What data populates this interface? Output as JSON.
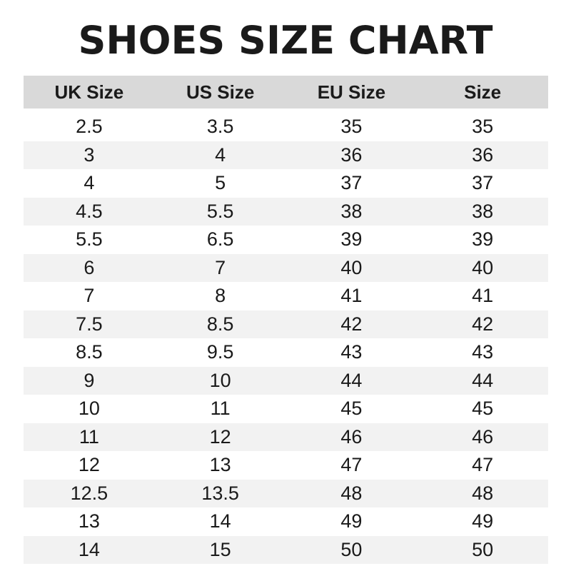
{
  "title": "SHOES SIZE CHART",
  "colors": {
    "header_bg": "#d9d9d9",
    "stripe_bg": "#f2f2f2",
    "text": "#1a1a1a"
  },
  "headers": [
    "UK Size",
    "US Size",
    "EU Size",
    "Size"
  ],
  "rows": [
    [
      "2.5",
      "3.5",
      "35",
      "35"
    ],
    [
      "3",
      "4",
      "36",
      "36"
    ],
    [
      "4",
      "5",
      "37",
      "37"
    ],
    [
      "4.5",
      "5.5",
      "38",
      "38"
    ],
    [
      "5.5",
      "6.5",
      "39",
      "39"
    ],
    [
      "6",
      "7",
      "40",
      "40"
    ],
    [
      "7",
      "8",
      "41",
      "41"
    ],
    [
      "7.5",
      "8.5",
      "42",
      "42"
    ],
    [
      "8.5",
      "9.5",
      "43",
      "43"
    ],
    [
      "9",
      "10",
      "44",
      "44"
    ],
    [
      "10",
      "11",
      "45",
      "45"
    ],
    [
      "11",
      "12",
      "46",
      "46"
    ],
    [
      "12",
      "13",
      "47",
      "47"
    ],
    [
      "12.5",
      "13.5",
      "48",
      "48"
    ],
    [
      "13",
      "14",
      "49",
      "49"
    ],
    [
      "14",
      "15",
      "50",
      "50"
    ]
  ]
}
